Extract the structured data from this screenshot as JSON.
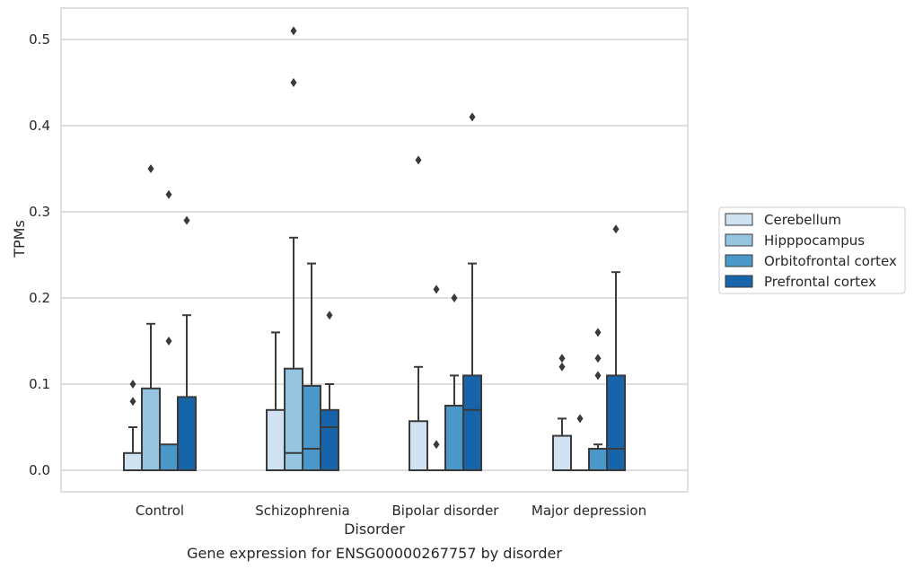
{
  "caption": "Gene expression for ENSG00000267757 by disorder",
  "chart_data": {
    "type": "box",
    "title": "",
    "xlabel": "Disorder",
    "ylabel": "TPMs",
    "ylim": [
      -0.025,
      0.54
    ],
    "yticks": [
      0.0,
      0.1,
      0.2,
      0.3,
      0.4,
      0.5
    ],
    "ytick_labels": [
      "0.0",
      "0.1",
      "0.2",
      "0.3",
      "0.4",
      "0.5"
    ],
    "grid": "horizontal",
    "legend_position": "right",
    "categories": [
      "Control",
      "Schizophrenia",
      "Bipolar disorder",
      "Major depression"
    ],
    "series": [
      {
        "name": "Cerebellum",
        "color": "#d0e1f2",
        "boxes": [
          {
            "whislo": 0.0,
            "q1": 0.0,
            "med": 0.0,
            "q3": 0.02,
            "whishi": 0.05,
            "fliers": [
              0.08,
              0.1
            ]
          },
          {
            "whislo": 0.0,
            "q1": 0.0,
            "med": 0.0,
            "q3": 0.07,
            "whishi": 0.16,
            "fliers": []
          },
          {
            "whislo": 0.0,
            "q1": 0.0,
            "med": 0.0,
            "q3": 0.057,
            "whishi": 0.12,
            "fliers": [
              0.36
            ]
          },
          {
            "whislo": 0.0,
            "q1": 0.0,
            "med": 0.0,
            "q3": 0.04,
            "whishi": 0.06,
            "fliers": [
              0.12,
              0.13
            ]
          }
        ]
      },
      {
        "name": "Hipppocampus",
        "color": "#94c4df",
        "boxes": [
          {
            "whislo": 0.0,
            "q1": 0.0,
            "med": 0.0,
            "q3": 0.095,
            "whishi": 0.17,
            "fliers": [
              0.35
            ]
          },
          {
            "whislo": 0.0,
            "q1": 0.0,
            "med": 0.02,
            "q3": 0.118,
            "whishi": 0.27,
            "fliers": [
              0.45,
              0.51
            ]
          },
          {
            "whislo": 0.0,
            "q1": 0.0,
            "med": 0.0,
            "q3": 0.0,
            "whishi": 0.0,
            "fliers": [
              0.03,
              0.21
            ]
          },
          {
            "whislo": 0.0,
            "q1": 0.0,
            "med": 0.0,
            "q3": 0.0,
            "whishi": 0.0,
            "fliers": [
              0.06
            ]
          }
        ]
      },
      {
        "name": "Orbitofrontal cortex",
        "color": "#4a98c9",
        "boxes": [
          {
            "whislo": 0.0,
            "q1": 0.0,
            "med": 0.0,
            "q3": 0.03,
            "whishi": 0.03,
            "fliers": [
              0.15,
              0.32
            ]
          },
          {
            "whislo": 0.0,
            "q1": 0.0,
            "med": 0.025,
            "q3": 0.098,
            "whishi": 0.24,
            "fliers": []
          },
          {
            "whislo": 0.0,
            "q1": 0.0,
            "med": 0.0,
            "q3": 0.075,
            "whishi": 0.11,
            "fliers": [
              0.2
            ]
          },
          {
            "whislo": 0.0,
            "q1": 0.0,
            "med": 0.0,
            "q3": 0.025,
            "whishi": 0.03,
            "fliers": [
              0.11,
              0.13,
              0.16
            ]
          }
        ]
      },
      {
        "name": "Prefrontal cortex",
        "color": "#1764ab",
        "boxes": [
          {
            "whislo": 0.0,
            "q1": 0.0,
            "med": 0.0,
            "q3": 0.085,
            "whishi": 0.18,
            "fliers": [
              0.29
            ]
          },
          {
            "whislo": 0.0,
            "q1": 0.0,
            "med": 0.05,
            "q3": 0.07,
            "whishi": 0.1,
            "fliers": [
              0.18
            ]
          },
          {
            "whislo": 0.0,
            "q1": 0.0,
            "med": 0.07,
            "q3": 0.11,
            "whishi": 0.24,
            "fliers": [
              0.41
            ]
          },
          {
            "whislo": 0.0,
            "q1": 0.0,
            "med": 0.025,
            "q3": 0.11,
            "whishi": 0.23,
            "fliers": [
              0.28
            ]
          }
        ]
      }
    ]
  }
}
